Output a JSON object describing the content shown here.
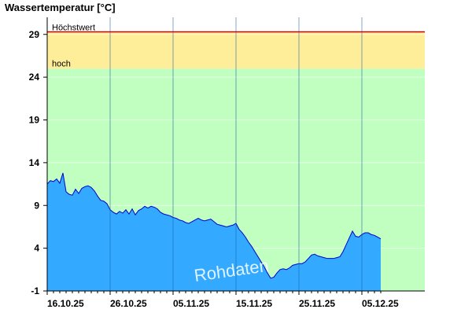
{
  "chart_data": {
    "type": "area",
    "title": "Wassertemperatur [°C]",
    "ylim": [
      -1,
      31
    ],
    "yticks": [
      -1,
      4,
      9,
      14,
      19,
      24,
      29
    ],
    "xticks": [
      "16.10.25",
      "26.10.25",
      "05.11.25",
      "15.11.25",
      "25.11.25",
      "05.12.25"
    ],
    "grid": true,
    "zones": [
      {
        "label": "hoch",
        "from": 25.0,
        "to": 29.3,
        "color": "#ffee99"
      },
      {
        "label": "Höchstwert",
        "value": 29.3,
        "color": "#cc0000"
      }
    ],
    "below_zone_color": "#c0ffc0",
    "area_color": "#33aaff",
    "line_color": "#0000cc",
    "watermark": "Rohdaten",
    "series": [
      {
        "x_start": "16.10.25",
        "x_step_days": 0.5,
        "values": [
          11.5,
          11.9,
          11.8,
          12.1,
          11.6,
          12.8,
          10.6,
          10.3,
          10.2,
          10.9,
          10.4,
          11.0,
          11.2,
          11.3,
          11.1,
          10.7,
          10.1,
          9.6,
          9.5,
          9.2,
          8.5,
          8.2,
          8.0,
          8.3,
          8.1,
          8.5,
          8.0,
          8.6,
          7.9,
          8.4,
          8.6,
          8.9,
          8.7,
          8.9,
          8.8,
          8.6,
          8.2,
          8.0,
          7.9,
          7.8,
          7.6,
          7.5,
          7.3,
          7.2,
          7.0,
          6.9,
          7.1,
          7.3,
          7.5,
          7.3,
          7.2,
          7.3,
          7.4,
          7.1,
          6.8,
          6.7,
          6.6,
          6.5,
          6.6,
          6.7,
          6.9,
          6.2,
          5.8,
          5.3,
          4.7,
          4.2,
          3.6,
          3.0,
          2.4,
          1.8,
          1.1,
          0.5,
          0.6,
          1.1,
          1.5,
          1.6,
          1.5,
          1.7,
          2.0,
          2.1,
          2.2,
          2.2,
          2.4,
          2.8,
          3.2,
          3.3,
          3.1,
          3.0,
          2.9,
          2.8,
          2.8,
          2.8,
          2.9,
          3.0,
          3.6,
          4.4,
          5.2,
          6.0,
          5.4,
          5.3,
          5.6,
          5.8,
          5.8,
          5.6,
          5.5,
          5.3,
          5.1
        ]
      }
    ]
  }
}
